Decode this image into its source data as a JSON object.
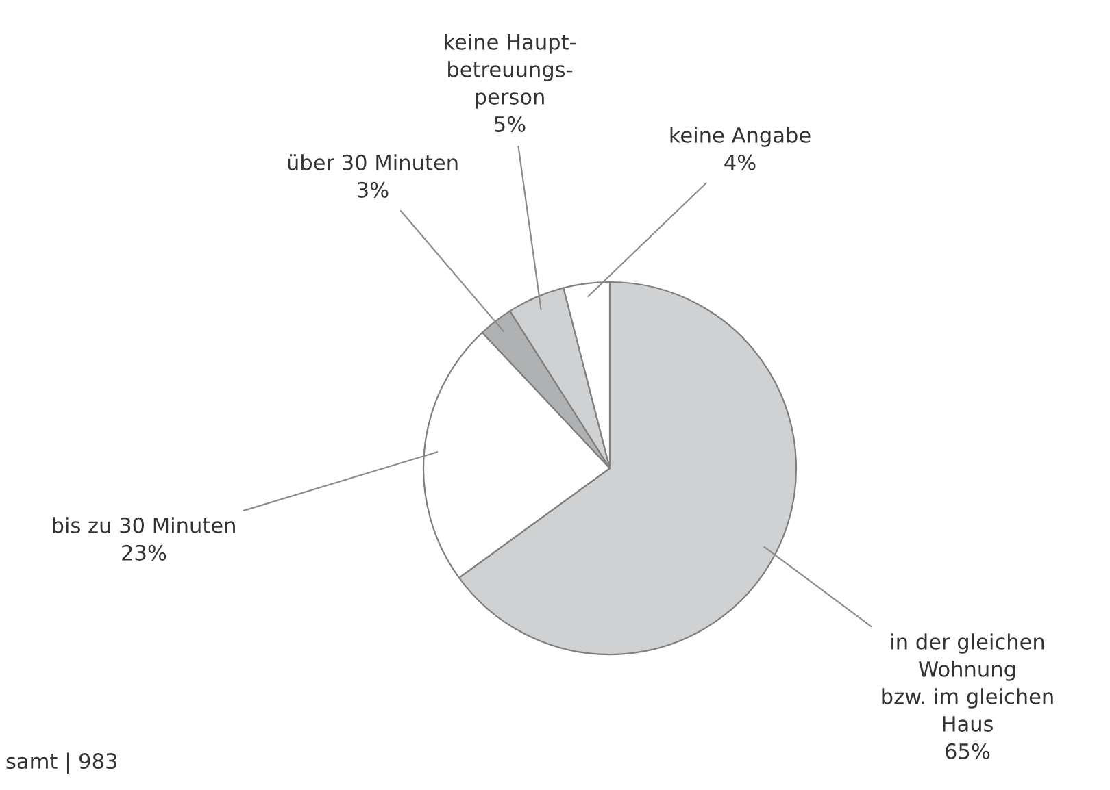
{
  "chart_data": {
    "type": "pie",
    "categories": [
      "in der gleichen\nWohnung\nbzw. im gleichen\nHaus",
      "bis zu 30 Minuten",
      "über 30 Minuten",
      "keine Haupt-\nbetreuungs-\nperson",
      "keine Angabe"
    ],
    "values": [
      65,
      23,
      3,
      5,
      4
    ],
    "value_labels": [
      "65%",
      "23%",
      "3%",
      "5%",
      "4%"
    ],
    "colors": [
      "#d0d1d2",
      "#ffffff",
      "#b0b1b3",
      "#d0d1d2",
      "#ffffff"
    ],
    "annotations": [
      "samt | 983"
    ]
  }
}
